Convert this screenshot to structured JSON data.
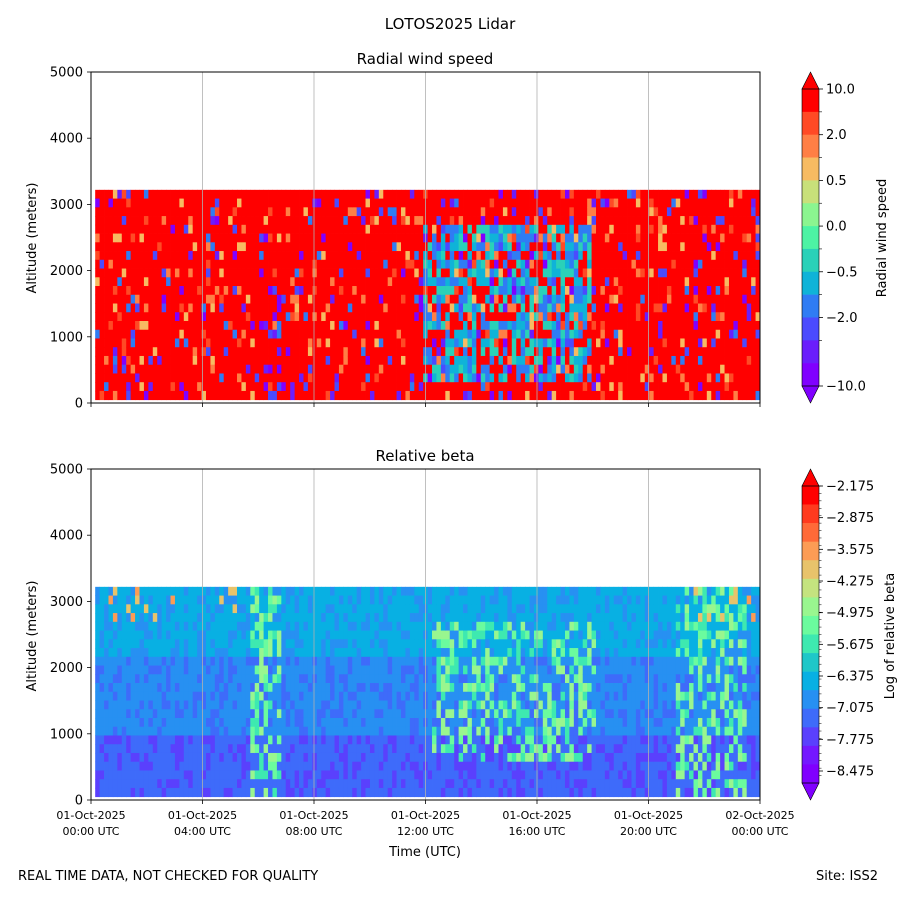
{
  "figure": {
    "suptitle": "LOTOS2025 Lidar",
    "footer_left": "REAL TIME DATA, NOT CHECKED FOR QUALITY",
    "footer_right": "Site: ISS2"
  },
  "chart_data": [
    {
      "type": "heatmap",
      "title": "Radial wind speed",
      "ylabel": "Altitude (meters)",
      "xlabel": "",
      "ylim": [
        0,
        5000
      ],
      "yticks": [
        "0",
        "1000",
        "2000",
        "3000",
        "4000",
        "5000"
      ],
      "xlim_hours": [
        0,
        24
      ],
      "x_tick_hours": [
        0,
        4,
        8,
        12,
        16,
        20,
        24
      ],
      "data_top_altitude": 3220,
      "grid": "vertical lines at x ticks",
      "colorbar": {
        "label": "Radial wind speed",
        "extend": "both",
        "levels": 13,
        "tick_labels": [
          "10.0",
          "2.0",
          "0.5",
          "0.0",
          "−0.5",
          "−2.0",
          "−10.0"
        ],
        "colors": [
          "#ff0000",
          "#ff4a25",
          "#ff7f45",
          "#f7bb62",
          "#c8e07a",
          "#8bf590",
          "#4df3a4",
          "#2ad1b8",
          "#0fb3d8",
          "#2f7cf4",
          "#4b4bfe",
          "#6a1efc",
          "#8000ff"
        ]
      }
    },
    {
      "type": "heatmap",
      "title": "Relative beta",
      "ylabel": "Altitude (meters)",
      "xlabel": "Time (UTC)",
      "ylim": [
        0,
        5000
      ],
      "yticks": [
        "0",
        "1000",
        "2000",
        "3000",
        "4000",
        "5000"
      ],
      "xticks": [
        {
          "date": "01-Oct-2025",
          "time": "00:00 UTC"
        },
        {
          "date": "01-Oct-2025",
          "time": "04:00 UTC"
        },
        {
          "date": "01-Oct-2025",
          "time": "08:00 UTC"
        },
        {
          "date": "01-Oct-2025",
          "time": "12:00 UTC"
        },
        {
          "date": "01-Oct-2025",
          "time": "16:00 UTC"
        },
        {
          "date": "01-Oct-2025",
          "time": "20:00 UTC"
        },
        {
          "date": "02-Oct-2025",
          "time": "00:00 UTC"
        }
      ],
      "data_top_altitude": 3220,
      "grid": "vertical lines at x ticks",
      "colorbar": {
        "label": "Log of relative beta",
        "extend": "both",
        "tick_labels": [
          "−2.175",
          "−2.875",
          "−3.575",
          "−4.275",
          "−4.975",
          "−5.675",
          "−6.375",
          "−7.075",
          "−7.775",
          "−8.475"
        ],
        "colors": [
          "#ff0000",
          "#ff3a1e",
          "#ff6a38",
          "#fc9c55",
          "#e8c36b",
          "#c4e37f",
          "#99f68f",
          "#6bfb9e",
          "#3ee9b0",
          "#1fc7c8",
          "#08b0e3",
          "#2790f2",
          "#3e6bfa",
          "#5a40fd",
          "#7418ff",
          "#8000ff"
        ]
      }
    }
  ]
}
